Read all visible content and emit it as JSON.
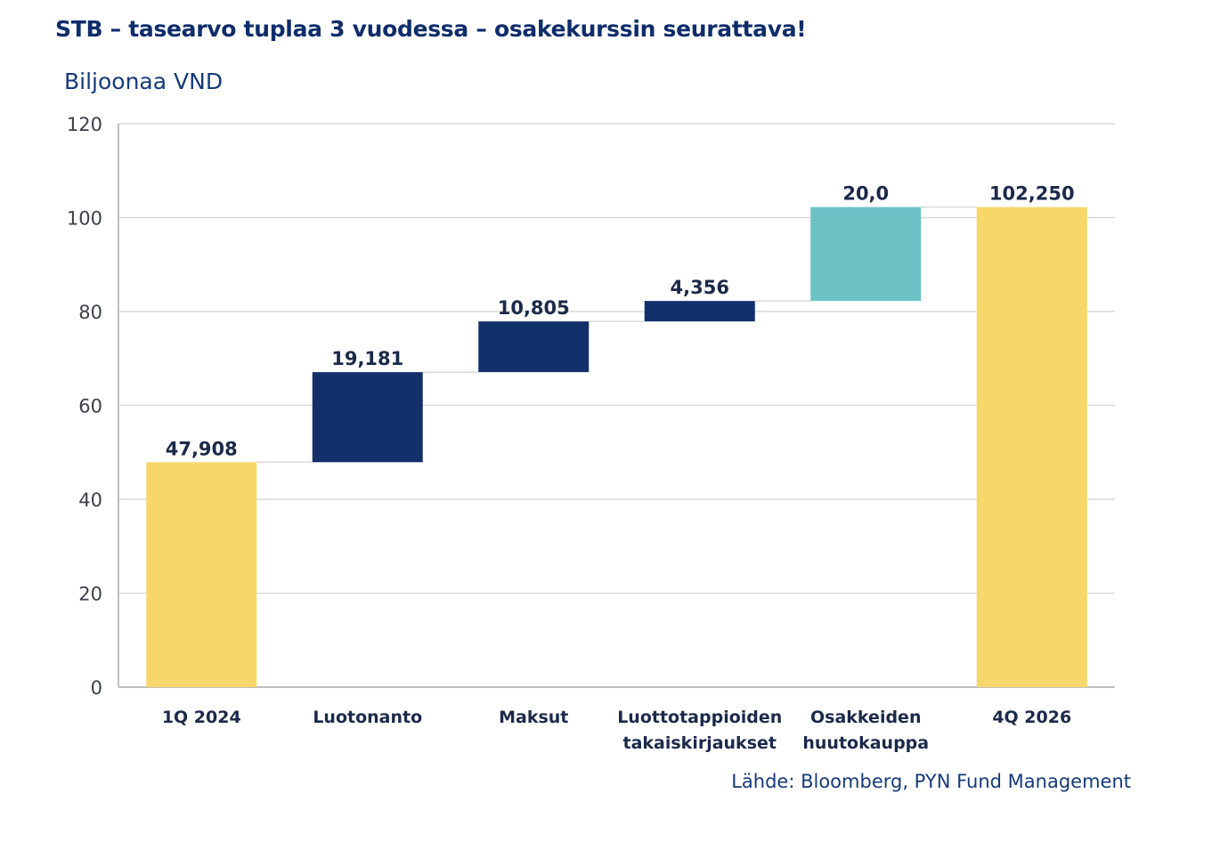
{
  "header": {
    "title": "STB – tasearvo tuplaa 3 vuodessa – osakekurssin seurattava!",
    "unit_label": "Biljoonaa VND"
  },
  "footer": {
    "source": "Lähde: Bloomberg, PYN Fund Management"
  },
  "colors": {
    "total": "#f7d76a",
    "increase": "#13306b",
    "highlight": "#6cc1c5",
    "grid": "#d9d9d9",
    "axis": "#bfbfbf"
  },
  "chart_data": {
    "type": "bar",
    "subtype": "waterfall",
    "title": "STB – tasearvo tuplaa 3 vuodessa – osakekurssin seurattava!",
    "ylabel": "Biljoonaa VND",
    "xlabel": "",
    "ylim": [
      0,
      120
    ],
    "yticks": [
      0,
      20,
      40,
      60,
      80,
      100,
      120
    ],
    "grid": true,
    "categories": [
      [
        "1Q 2024"
      ],
      [
        "Luotonanto"
      ],
      [
        "Maksut"
      ],
      [
        "Luottotappioiden",
        "takaiskirjaukset"
      ],
      [
        "Osakkeiden",
        "huutokauppa"
      ],
      [
        "4Q 2026"
      ]
    ],
    "bars": [
      {
        "kind": "total",
        "value": 47.908,
        "label": "47,908"
      },
      {
        "kind": "increase",
        "value": 19.181,
        "label": "19,181"
      },
      {
        "kind": "increase",
        "value": 10.805,
        "label": "10,805"
      },
      {
        "kind": "increase",
        "value": 4.356,
        "label": "4,356"
      },
      {
        "kind": "highlight",
        "value": 20.0,
        "label": "20,0"
      },
      {
        "kind": "total",
        "value": 102.25,
        "label": "102,250"
      }
    ]
  }
}
